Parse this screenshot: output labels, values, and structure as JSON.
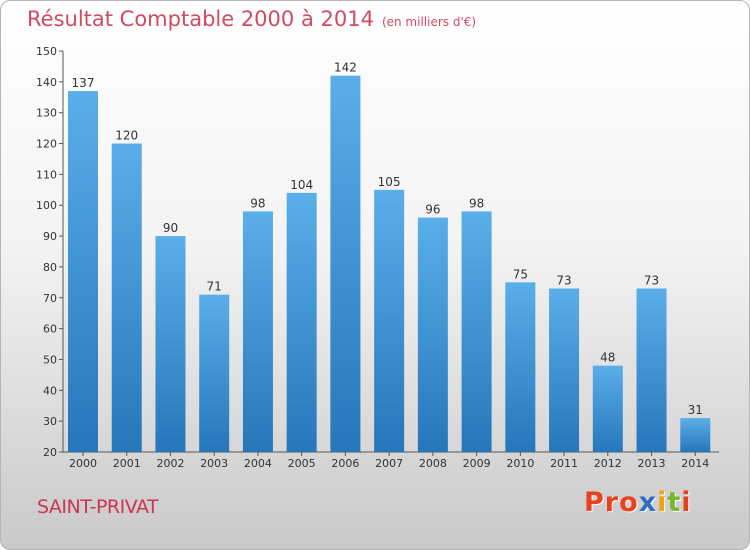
{
  "header": {
    "title": "Résultat Comptable 2000 à 2014",
    "unit": "(en milliers d'€)"
  },
  "footer": {
    "commune": "SAINT-PRIVAT",
    "logo": "Proxiti"
  },
  "colors": {
    "title": "#d24a62",
    "bar_top": "#5aaee9",
    "bar_bottom": "#2677ba",
    "logo_letters": [
      "#e8411d",
      "#e8411d",
      "#e8411d",
      "#2f6fc0",
      "#f2a20b",
      "#79b62b",
      "#e8411d"
    ]
  },
  "chart_data": {
    "type": "bar",
    "title": "Résultat Comptable 2000 à 2014",
    "unit": "(en milliers d'€)",
    "xlabel": "",
    "ylabel": "",
    "categories": [
      "2000",
      "2001",
      "2002",
      "2003",
      "2004",
      "2005",
      "2006",
      "2007",
      "2008",
      "2009",
      "2010",
      "2011",
      "2012",
      "2013",
      "2014"
    ],
    "values": [
      137,
      120,
      90,
      71,
      98,
      104,
      142,
      105,
      96,
      98,
      75,
      73,
      48,
      73,
      31
    ],
    "ylim": [
      20,
      150
    ],
    "yticks": [
      20,
      30,
      40,
      50,
      60,
      70,
      80,
      90,
      100,
      110,
      120,
      130,
      140,
      150
    ],
    "grid": false,
    "legend": "none"
  }
}
